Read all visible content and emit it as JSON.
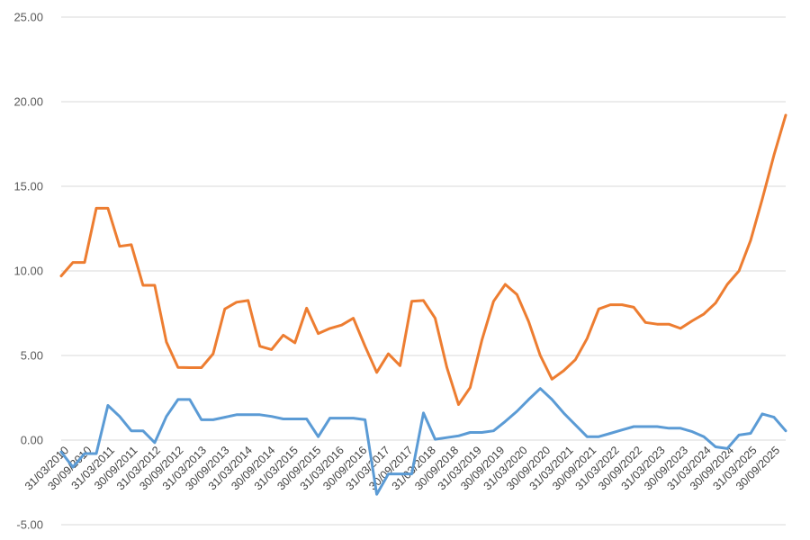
{
  "chart_data": {
    "type": "line",
    "title": "",
    "xlabel": "",
    "ylabel": "",
    "ylim": [
      -5,
      25
    ],
    "y_ticks": [
      "25.00",
      "20.00",
      "15.00",
      "10.00",
      "5.00",
      "0.00",
      "-5.00"
    ],
    "y_tick_values": [
      25,
      20,
      15,
      10,
      5,
      0,
      -5
    ],
    "grid": true,
    "legend": "none",
    "x_tick_labels": [
      "31/03/2010",
      "30/09/2010",
      "31/03/2011",
      "30/09/2011",
      "31/03/2012",
      "30/09/2012",
      "31/03/2013",
      "30/09/2013",
      "31/03/2014",
      "30/09/2014",
      "31/03/2015",
      "30/09/2015",
      "31/03/2016",
      "30/09/2016",
      "31/03/2017",
      "30/09/2017",
      "31/03/2018",
      "30/09/2018",
      "31/03/2019",
      "30/09/2019",
      "31/03/2020",
      "30/09/2020",
      "31/03/2021",
      "30/09/2021",
      "31/03/2022",
      "30/09/2022",
      "31/03/2023",
      "30/09/2023",
      "31/03/2024",
      "30/09/2024",
      "31/03/2025",
      "30/09/2025"
    ],
    "series": [
      {
        "color": "#ED7D31",
        "values": [
          9.7,
          10.5,
          10.5,
          13.7,
          13.7,
          11.45,
          11.55,
          9.15,
          9.15,
          5.8,
          4.3,
          4.28,
          4.28,
          5.1,
          7.75,
          8.15,
          8.25,
          5.55,
          5.35,
          6.2,
          5.75,
          7.8,
          6.3,
          6.6,
          6.8,
          7.2,
          5.55,
          4.0,
          5.1,
          4.4,
          8.2,
          8.25,
          7.2,
          4.3,
          2.1,
          3.1,
          5.9,
          8.2,
          9.2,
          8.6,
          7.0,
          5.0,
          3.6,
          4.1,
          4.75,
          6.0,
          7.75,
          8.0,
          8.0,
          7.85,
          6.95,
          6.85,
          6.85,
          6.6,
          7.05,
          7.45,
          8.1,
          9.2,
          10.0,
          11.8,
          14.25,
          16.85,
          19.2
        ]
      },
      {
        "color": "#5B9BD5",
        "values": [
          -0.7,
          -1.6,
          -0.8,
          -0.8,
          2.05,
          1.4,
          0.55,
          0.55,
          -0.15,
          1.4,
          2.4,
          2.4,
          1.2,
          1.2,
          1.35,
          1.5,
          1.5,
          1.5,
          1.4,
          1.25,
          1.25,
          1.25,
          0.2,
          1.3,
          1.3,
          1.3,
          1.2,
          -3.2,
          -2.0,
          -2.0,
          -2.0,
          1.6,
          0.05,
          0.15,
          0.25,
          0.45,
          0.45,
          0.55,
          1.1,
          1.7,
          2.4,
          3.05,
          2.4,
          1.6,
          0.9,
          0.2,
          0.2,
          0.4,
          0.6,
          0.8,
          0.8,
          0.8,
          0.7,
          0.7,
          0.5,
          0.2,
          -0.4,
          -0.5,
          0.3,
          0.4,
          1.55,
          1.35,
          0.55
        ]
      }
    ]
  }
}
